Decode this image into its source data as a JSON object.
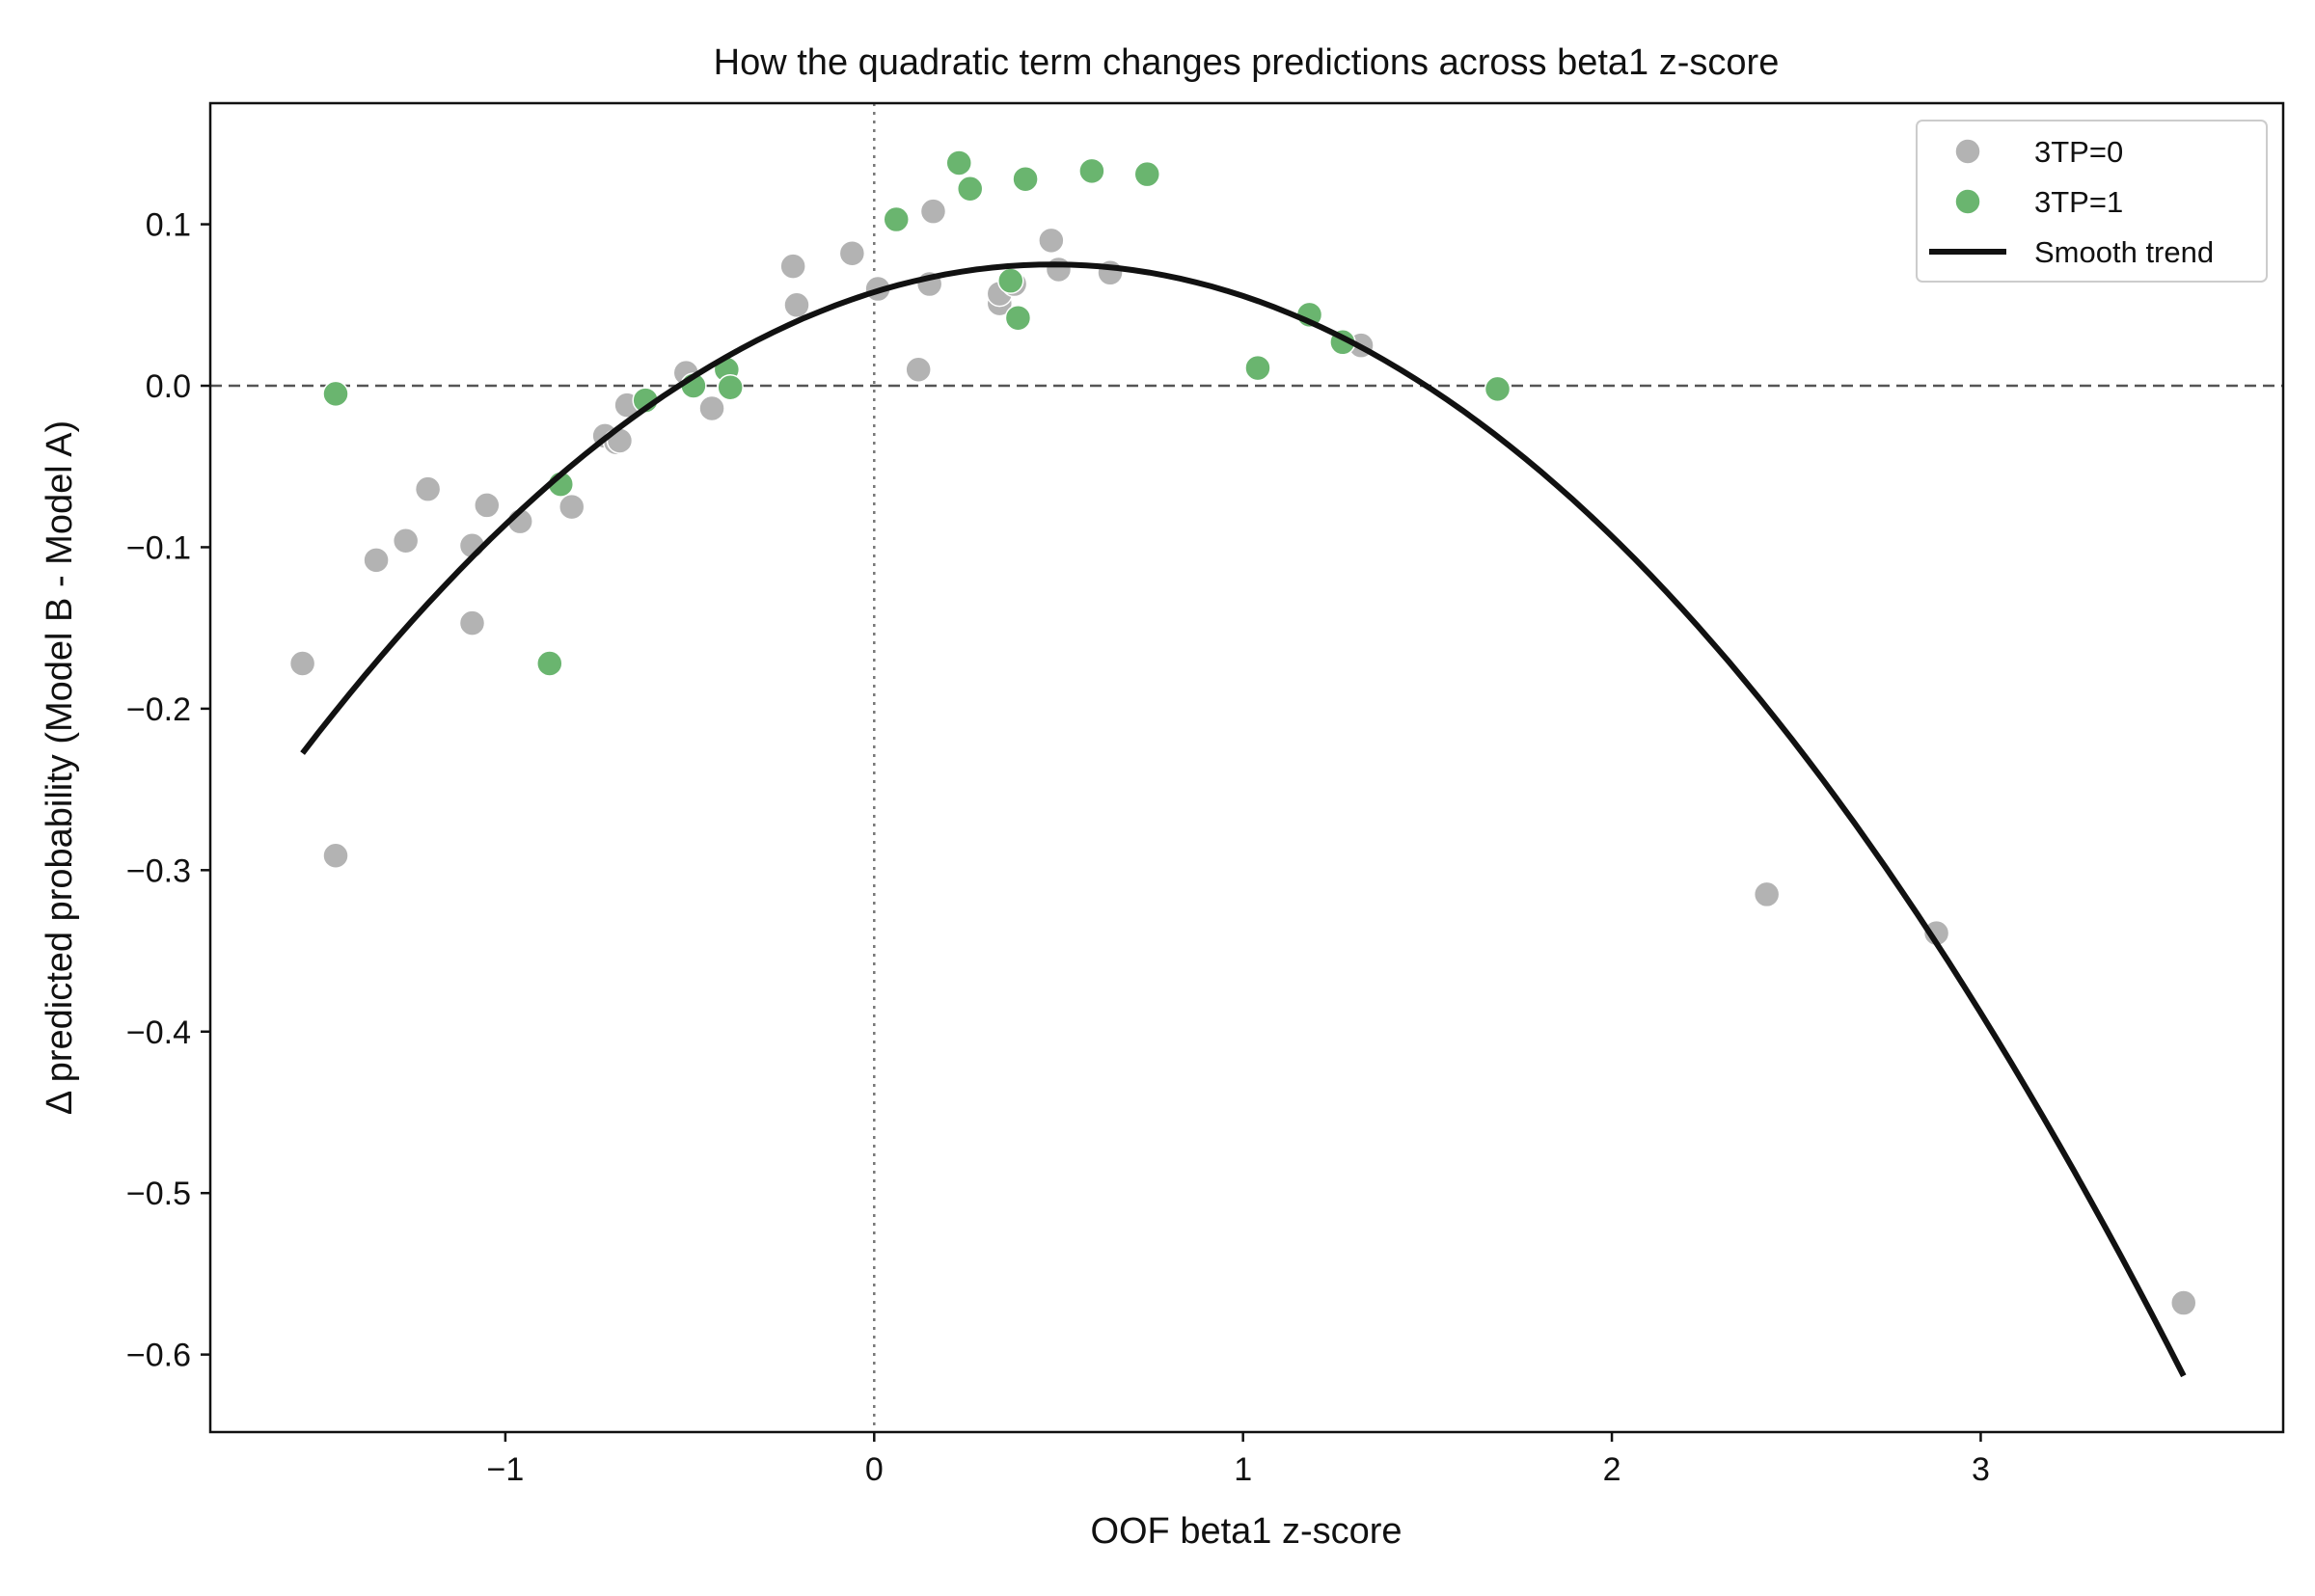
{
  "chart_data": {
    "type": "scatter",
    "title": "How the quadratic term changes predictions across beta1 z-score",
    "xlabel": "OOF beta1 z-score",
    "ylabel": "Δ predicted probability (Model B - Model A)",
    "xlim": [
      -1.8,
      3.82
    ],
    "ylim": [
      -0.648,
      0.175
    ],
    "x_ticks": [
      -1,
      0,
      1,
      2,
      3
    ],
    "x_tick_labels": [
      "−1",
      "0",
      "1",
      "2",
      "3"
    ],
    "y_ticks": [
      0.1,
      0.0,
      -0.1,
      -0.2,
      -0.3,
      -0.4,
      -0.5,
      -0.6
    ],
    "y_tick_labels": [
      "0.1",
      "0.0",
      "−0.1",
      "−0.2",
      "−0.3",
      "−0.4",
      "−0.5",
      "−0.6"
    ],
    "grid": false,
    "reference_lines": [
      {
        "axis": "y",
        "value": 0.0,
        "style": "dashed"
      },
      {
        "axis": "x",
        "value": 0.0,
        "style": "dotted"
      }
    ],
    "legend": {
      "position": "top-right"
    },
    "series": [
      {
        "name": "3TP=0",
        "kind": "scatter",
        "color": "#b3b3b3",
        "points": [
          [
            -1.55,
            -0.172
          ],
          [
            -1.46,
            -0.291
          ],
          [
            -1.35,
            -0.108
          ],
          [
            -1.27,
            -0.096
          ],
          [
            -1.21,
            -0.064
          ],
          [
            -1.09,
            -0.099
          ],
          [
            -1.09,
            -0.147
          ],
          [
            -1.05,
            -0.074
          ],
          [
            -0.96,
            -0.084
          ],
          [
            -0.82,
            -0.075
          ],
          [
            -0.73,
            -0.031
          ],
          [
            -0.7,
            -0.035
          ],
          [
            -0.69,
            -0.034
          ],
          [
            -0.67,
            -0.012
          ],
          [
            -0.51,
            0.008
          ],
          [
            -0.44,
            -0.014
          ],
          [
            -0.22,
            0.074
          ],
          [
            -0.21,
            0.05
          ],
          [
            -0.06,
            0.082
          ],
          [
            0.01,
            0.06
          ],
          [
            0.12,
            0.01
          ],
          [
            0.15,
            0.063
          ],
          [
            0.16,
            0.108
          ],
          [
            0.34,
            0.051
          ],
          [
            0.34,
            0.057
          ],
          [
            0.38,
            0.063
          ],
          [
            0.48,
            0.09
          ],
          [
            0.5,
            0.072
          ],
          [
            0.64,
            0.07
          ],
          [
            1.32,
            0.025
          ],
          [
            2.42,
            -0.315
          ],
          [
            2.88,
            -0.339
          ],
          [
            3.55,
            -0.568
          ]
        ]
      },
      {
        "name": "3TP=1",
        "kind": "scatter",
        "color": "#6ab56f",
        "points": [
          [
            -1.46,
            -0.005
          ],
          [
            -0.88,
            -0.172
          ],
          [
            -0.85,
            -0.061
          ],
          [
            -0.62,
            -0.009
          ],
          [
            -0.49,
            0.0
          ],
          [
            -0.4,
            0.01
          ],
          [
            -0.39,
            -0.001
          ],
          [
            0.06,
            0.103
          ],
          [
            0.23,
            0.138
          ],
          [
            0.26,
            0.122
          ],
          [
            0.37,
            0.065
          ],
          [
            0.39,
            0.042
          ],
          [
            0.41,
            0.128
          ],
          [
            0.59,
            0.133
          ],
          [
            0.74,
            0.131
          ],
          [
            1.04,
            0.011
          ],
          [
            1.18,
            0.044
          ],
          [
            1.27,
            0.027
          ],
          [
            1.69,
            -0.002
          ]
        ]
      },
      {
        "name": "Smooth trend",
        "kind": "line",
        "color": "#111111",
        "x_range": [
          -1.55,
          3.55
        ],
        "coefficients": [
          0.058,
          0.0708,
          -0.0732
        ]
      }
    ]
  }
}
